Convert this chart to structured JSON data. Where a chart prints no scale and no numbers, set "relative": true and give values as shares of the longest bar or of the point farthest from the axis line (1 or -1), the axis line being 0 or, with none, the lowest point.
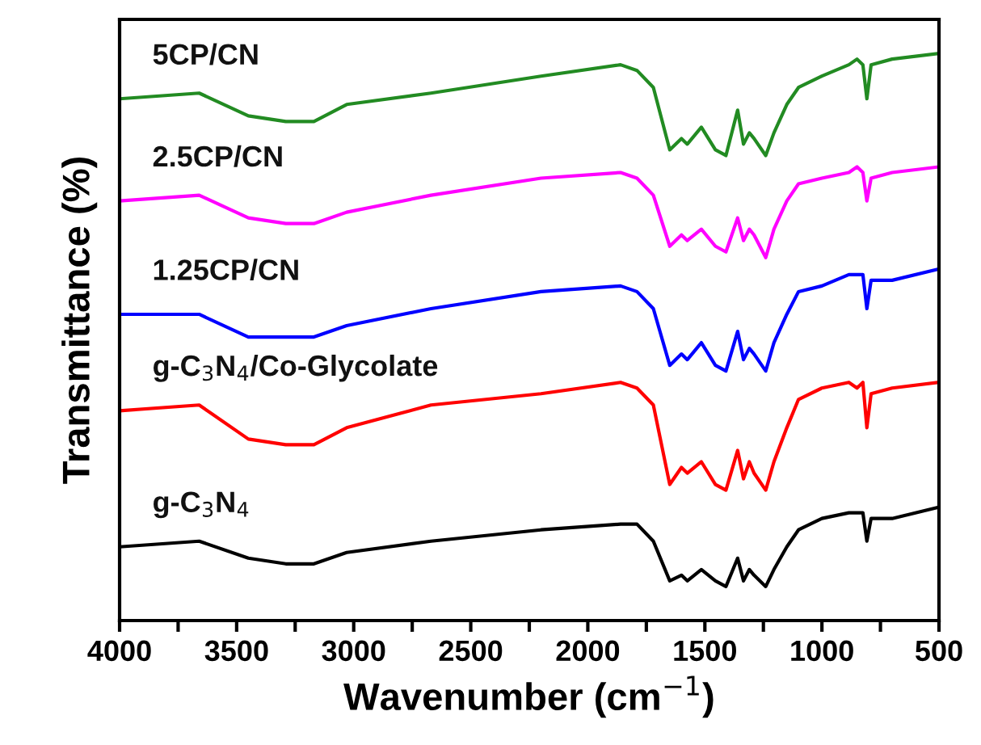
{
  "chart_data": {
    "type": "line",
    "relative": true,
    "xlabel": "Wavenumber (cm$^{−1}$)",
    "ylabel": "Transmittance (%)",
    "x": [
      4000,
      3660,
      3450,
      3290,
      3170,
      3030,
      2670,
      2200,
      1860,
      1790,
      1720,
      1650,
      1600,
      1575,
      1515,
      1455,
      1410,
      1360,
      1335,
      1310,
      1290,
      1240,
      1205,
      1150,
      1100,
      1000,
      885,
      850,
      825,
      808,
      790,
      700,
      500
    ],
    "xlim": [
      4000,
      500
    ],
    "xticks": [
      4000,
      {
        "value": 3750,
        "label": null
      },
      3500,
      {
        "value": 3250,
        "label": null
      },
      3000,
      {
        "value": 2750,
        "label": null
      },
      2500,
      {
        "value": 2250,
        "label": null
      },
      2000,
      {
        "value": 1750,
        "label": null
      },
      1500,
      {
        "value": 1250,
        "label": null
      },
      1000,
      {
        "value": 750,
        "label": null
      },
      500
    ],
    "series": [
      {
        "name": "5CP/CN",
        "color": "#228b22",
        "values": [
          0.92,
          0.93,
          0.89,
          0.88,
          0.88,
          0.91,
          0.93,
          0.96,
          0.98,
          0.97,
          0.94,
          0.83,
          0.85,
          0.84,
          0.87,
          0.83,
          0.82,
          0.9,
          0.84,
          0.86,
          0.85,
          0.82,
          0.86,
          0.91,
          0.94,
          0.96,
          0.98,
          0.99,
          0.98,
          0.92,
          0.98,
          0.99,
          1.0
        ]
      },
      {
        "name": "2.5CP/CN",
        "color": "#ff00ff",
        "values": [
          0.74,
          0.75,
          0.71,
          0.7,
          0.7,
          0.72,
          0.75,
          0.78,
          0.79,
          0.78,
          0.75,
          0.66,
          0.68,
          0.67,
          0.69,
          0.66,
          0.65,
          0.71,
          0.67,
          0.69,
          0.68,
          0.64,
          0.69,
          0.74,
          0.77,
          0.78,
          0.79,
          0.8,
          0.79,
          0.74,
          0.78,
          0.79,
          0.8
        ]
      },
      {
        "name": "1.25CP/CN",
        "color": "#0000ff",
        "values": [
          0.54,
          0.54,
          0.5,
          0.5,
          0.5,
          0.52,
          0.55,
          0.58,
          0.59,
          0.58,
          0.55,
          0.45,
          0.47,
          0.46,
          0.49,
          0.45,
          0.44,
          0.51,
          0.46,
          0.48,
          0.47,
          0.44,
          0.49,
          0.54,
          0.58,
          0.59,
          0.61,
          0.61,
          0.61,
          0.55,
          0.6,
          0.6,
          0.62
        ]
      },
      {
        "name": "g-C$_{3}$N$_{4}$/Co-Glycolate",
        "color": "#ff0000",
        "values": [
          0.37,
          0.38,
          0.32,
          0.31,
          0.31,
          0.34,
          0.38,
          0.4,
          0.42,
          0.41,
          0.38,
          0.24,
          0.27,
          0.26,
          0.28,
          0.24,
          0.23,
          0.3,
          0.25,
          0.28,
          0.26,
          0.23,
          0.28,
          0.34,
          0.39,
          0.41,
          0.42,
          0.41,
          0.42,
          0.34,
          0.4,
          0.41,
          0.42
        ]
      },
      {
        "name": "g-C$_{3}$N$_{4}$",
        "color": "#000000",
        "values": [
          0.13,
          0.14,
          0.11,
          0.1,
          0.1,
          0.12,
          0.14,
          0.16,
          0.17,
          0.17,
          0.14,
          0.07,
          0.08,
          0.07,
          0.09,
          0.07,
          0.06,
          0.11,
          0.07,
          0.09,
          0.08,
          0.06,
          0.09,
          0.13,
          0.16,
          0.18,
          0.19,
          0.19,
          0.19,
          0.14,
          0.18,
          0.18,
          0.2
        ]
      }
    ],
    "marker": "none",
    "line_style": "solid",
    "grid": false
  }
}
